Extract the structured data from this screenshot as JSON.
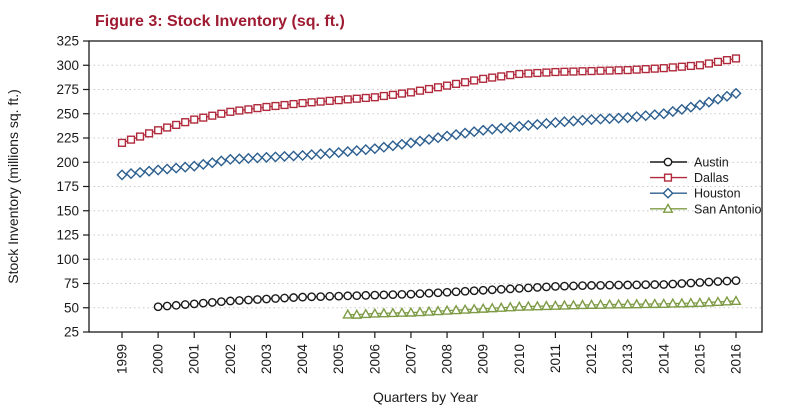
{
  "title": "Figure 3: Stock Inventory (sq. ft.)",
  "colors": {
    "title": "#9e1b32",
    "austin": "#1a1a1a",
    "dallas": "#b02a3c",
    "houston": "#2d5f8f",
    "san_antonio": "#7d9b44",
    "axis": "#1a1a1a",
    "gridline": "#c8c8c8"
  },
  "chart_data": {
    "type": "line",
    "title": "Figure 3: Stock Inventory (sq. ft.)",
    "xlabel": "Quarters by Year",
    "ylabel": "Stock Inventory (millions sq. ft.)",
    "ylim": [
      25,
      325
    ],
    "xlim": [
      1999,
      2016
    ],
    "yticks": [
      25,
      50,
      75,
      100,
      125,
      150,
      175,
      200,
      225,
      250,
      275,
      300,
      325
    ],
    "xticks": [
      1999,
      2000,
      2001,
      2002,
      2003,
      2004,
      2005,
      2006,
      2007,
      2008,
      2009,
      2010,
      2011,
      2012,
      2013,
      2014,
      2015,
      2016
    ],
    "grid": "horizontal-dotted",
    "legend_position": "inside-right",
    "x_unit": "quarterly (x step = 0.25 year)",
    "series": [
      {
        "name": "Austin",
        "color": "#1a1a1a",
        "marker": "circle",
        "start": 2000.0,
        "values": [
          51.0,
          51.8,
          52.5,
          53.3,
          54.0,
          54.8,
          55.5,
          56.3,
          57.0,
          57.5,
          58.0,
          58.5,
          59.0,
          59.5,
          60.0,
          60.5,
          61.0,
          61.3,
          61.5,
          61.8,
          62.0,
          62.3,
          62.5,
          62.8,
          63.0,
          63.3,
          63.5,
          63.8,
          64.0,
          64.5,
          65.0,
          65.5,
          66.0,
          66.5,
          67.0,
          67.5,
          68.0,
          68.5,
          69.0,
          69.5,
          70.0,
          70.5,
          71.0,
          71.5,
          72.0,
          72.3,
          72.5,
          72.8,
          73.0,
          73.1,
          73.3,
          73.4,
          73.5,
          73.6,
          73.8,
          73.9,
          74.0,
          74.5,
          75.0,
          75.5,
          76.0,
          76.5,
          77.0,
          77.5,
          78.0
        ]
      },
      {
        "name": "Dallas",
        "color": "#b02a3c",
        "marker": "square",
        "start": 1999.0,
        "values": [
          220.0,
          223.3,
          226.5,
          229.8,
          233.0,
          235.8,
          238.5,
          241.3,
          244.0,
          246.0,
          248.0,
          250.0,
          252.0,
          253.3,
          254.5,
          255.8,
          257.0,
          258.0,
          259.0,
          260.0,
          261.0,
          261.8,
          262.5,
          263.3,
          264.0,
          264.8,
          265.5,
          266.3,
          267.0,
          268.3,
          269.5,
          270.8,
          272.0,
          273.8,
          275.5,
          277.3,
          279.0,
          280.8,
          282.5,
          284.3,
          286.0,
          287.3,
          288.5,
          289.8,
          291.0,
          291.5,
          292.0,
          292.5,
          293.0,
          293.3,
          293.5,
          293.8,
          294.0,
          294.3,
          294.5,
          294.8,
          295.0,
          295.5,
          296.0,
          296.5,
          297.0,
          297.8,
          298.5,
          299.3,
          300.0,
          301.8,
          303.5,
          305.3,
          307.0
        ]
      },
      {
        "name": "Houston",
        "color": "#2d5f8f",
        "marker": "diamond",
        "start": 1999.0,
        "values": [
          187.0,
          188.3,
          189.5,
          190.8,
          192.0,
          193.0,
          194.0,
          195.0,
          196.0,
          197.8,
          199.5,
          201.3,
          203.0,
          203.5,
          204.0,
          204.5,
          205.0,
          205.5,
          206.0,
          206.5,
          207.0,
          207.8,
          208.5,
          209.3,
          210.0,
          211.0,
          212.0,
          213.0,
          214.0,
          215.5,
          217.0,
          218.5,
          220.0,
          221.8,
          223.5,
          225.3,
          227.0,
          228.5,
          230.0,
          231.5,
          233.0,
          234.0,
          235.0,
          236.0,
          237.0,
          238.0,
          239.0,
          240.0,
          241.0,
          241.8,
          242.5,
          243.3,
          244.0,
          244.5,
          245.0,
          245.5,
          246.0,
          247.0,
          248.0,
          249.0,
          250.0,
          252.3,
          254.5,
          256.8,
          259.0,
          262.0,
          265.0,
          268.0,
          271.0
        ]
      },
      {
        "name": "San Antonio",
        "color": "#7d9b44",
        "marker": "triangle",
        "start": 2005.25,
        "values": [
          43.0,
          42.8,
          43.5,
          44.0,
          44.3,
          44.5,
          44.8,
          45.0,
          45.5,
          46.0,
          46.5,
          47.0,
          47.5,
          48.0,
          48.5,
          49.0,
          49.5,
          50.0,
          50.5,
          51.0,
          51.3,
          51.5,
          51.8,
          52.0,
          52.3,
          52.5,
          52.8,
          53.0,
          53.1,
          53.3,
          53.4,
          53.5,
          53.6,
          53.8,
          53.9,
          54.0,
          54.3,
          54.5,
          54.8,
          55.0,
          55.5,
          56.0,
          56.5,
          57.0
        ]
      }
    ]
  }
}
